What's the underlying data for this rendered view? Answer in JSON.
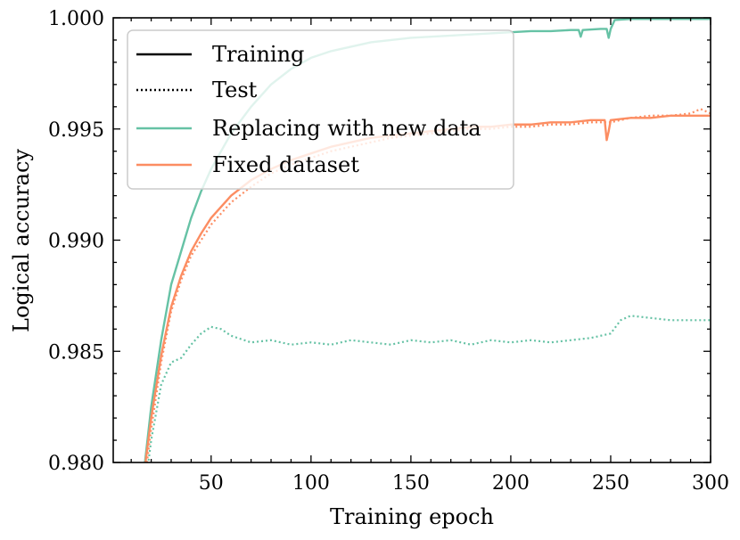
{
  "chart_data": {
    "type": "line",
    "title": "",
    "xlabel": "Training epoch",
    "ylabel": "Logical accuracy",
    "xlim": [
      1,
      300
    ],
    "ylim": [
      0.98,
      1.0
    ],
    "xticks": [
      50,
      100,
      150,
      200,
      250,
      300
    ],
    "xtick_labels": [
      "50",
      "100",
      "150",
      "200",
      "250",
      "300"
    ],
    "yticks": [
      0.98,
      0.985,
      0.99,
      0.995,
      1.0
    ],
    "ytick_labels": [
      "0.980",
      "0.985",
      "0.990",
      "0.995",
      "1.000"
    ],
    "grid": false,
    "legend_position": "top-left",
    "legend": [
      {
        "label": "Training",
        "style": "solid",
        "color": "#000000"
      },
      {
        "label": "Test",
        "style": "dotted",
        "color": "#000000"
      },
      {
        "label": "Replacing with new data",
        "style": "solid",
        "color": "#66c2a5"
      },
      {
        "label": "Fixed dataset",
        "style": "solid",
        "color": "#fc8d62"
      }
    ],
    "series": [
      {
        "name": "Replacing with new data - Training",
        "color": "#66c2a5",
        "style": "solid",
        "points": [
          [
            15,
            0.9785
          ],
          [
            20,
            0.9825
          ],
          [
            25,
            0.9855
          ],
          [
            30,
            0.988
          ],
          [
            35,
            0.9895
          ],
          [
            40,
            0.991
          ],
          [
            45,
            0.9922
          ],
          [
            50,
            0.9932
          ],
          [
            55,
            0.994
          ],
          [
            60,
            0.9948
          ],
          [
            70,
            0.996
          ],
          [
            80,
            0.997
          ],
          [
            90,
            0.9977
          ],
          [
            100,
            0.9982
          ],
          [
            110,
            0.9985
          ],
          [
            120,
            0.9987
          ],
          [
            130,
            0.9989
          ],
          [
            140,
            0.999
          ],
          [
            150,
            0.9991
          ],
          [
            160,
            0.99915
          ],
          [
            170,
            0.9992
          ],
          [
            180,
            0.99925
          ],
          [
            190,
            0.9993
          ],
          [
            200,
            0.99935
          ],
          [
            210,
            0.9994
          ],
          [
            220,
            0.9994
          ],
          [
            230,
            0.99945
          ],
          [
            234,
            0.99945
          ],
          [
            235,
            0.99915
          ],
          [
            236,
            0.99945
          ],
          [
            245,
            0.9995
          ],
          [
            248,
            0.9995
          ],
          [
            249,
            0.9991
          ],
          [
            250,
            0.9995
          ],
          [
            252,
            0.9999
          ],
          [
            260,
            0.99995
          ],
          [
            280,
            0.99995
          ],
          [
            300,
            0.99995
          ]
        ]
      },
      {
        "name": "Replacing with new data - Test",
        "color": "#66c2a5",
        "style": "dotted",
        "points": [
          [
            15,
            0.9775
          ],
          [
            20,
            0.981
          ],
          [
            25,
            0.9835
          ],
          [
            30,
            0.9845
          ],
          [
            35,
            0.9847
          ],
          [
            40,
            0.9853
          ],
          [
            45,
            0.9858
          ],
          [
            50,
            0.9861
          ],
          [
            55,
            0.986
          ],
          [
            60,
            0.9857
          ],
          [
            70,
            0.9854
          ],
          [
            80,
            0.9855
          ],
          [
            90,
            0.9853
          ],
          [
            100,
            0.9854
          ],
          [
            110,
            0.9853
          ],
          [
            120,
            0.9855
          ],
          [
            130,
            0.9854
          ],
          [
            140,
            0.9853
          ],
          [
            150,
            0.9855
          ],
          [
            160,
            0.9854
          ],
          [
            170,
            0.9855
          ],
          [
            180,
            0.9853
          ],
          [
            190,
            0.9855
          ],
          [
            200,
            0.9854
          ],
          [
            210,
            0.9855
          ],
          [
            220,
            0.9854
          ],
          [
            230,
            0.9855
          ],
          [
            240,
            0.9856
          ],
          [
            250,
            0.9858
          ],
          [
            255,
            0.9864
          ],
          [
            260,
            0.9866
          ],
          [
            270,
            0.9865
          ],
          [
            280,
            0.9864
          ],
          [
            290,
            0.9864
          ],
          [
            300,
            0.9864
          ]
        ]
      },
      {
        "name": "Fixed dataset - Training",
        "color": "#fc8d62",
        "style": "solid",
        "points": [
          [
            15,
            0.9785
          ],
          [
            20,
            0.982
          ],
          [
            25,
            0.9848
          ],
          [
            30,
            0.987
          ],
          [
            35,
            0.9884
          ],
          [
            40,
            0.9895
          ],
          [
            45,
            0.9903
          ],
          [
            50,
            0.991
          ],
          [
            55,
            0.9915
          ],
          [
            60,
            0.992
          ],
          [
            70,
            0.9927
          ],
          [
            80,
            0.9932
          ],
          [
            90,
            0.9936
          ],
          [
            100,
            0.9939
          ],
          [
            110,
            0.9942
          ],
          [
            120,
            0.9944
          ],
          [
            130,
            0.9946
          ],
          [
            140,
            0.9947
          ],
          [
            150,
            0.9948
          ],
          [
            160,
            0.9949
          ],
          [
            170,
            0.995
          ],
          [
            180,
            0.9951
          ],
          [
            190,
            0.9951
          ],
          [
            200,
            0.9952
          ],
          [
            210,
            0.9952
          ],
          [
            220,
            0.9953
          ],
          [
            230,
            0.9953
          ],
          [
            240,
            0.9954
          ],
          [
            247,
            0.9954
          ],
          [
            248,
            0.9945
          ],
          [
            249,
            0.9949
          ],
          [
            250,
            0.9954
          ],
          [
            260,
            0.9955
          ],
          [
            270,
            0.9955
          ],
          [
            280,
            0.9956
          ],
          [
            290,
            0.9956
          ],
          [
            300,
            0.9956
          ]
        ]
      },
      {
        "name": "Fixed dataset - Test",
        "color": "#fc8d62",
        "style": "dotted",
        "points": [
          [
            15,
            0.978
          ],
          [
            20,
            0.9815
          ],
          [
            25,
            0.9845
          ],
          [
            30,
            0.9868
          ],
          [
            35,
            0.9882
          ],
          [
            40,
            0.9893
          ],
          [
            45,
            0.99
          ],
          [
            50,
            0.9907
          ],
          [
            55,
            0.9912
          ],
          [
            60,
            0.9917
          ],
          [
            70,
            0.9924
          ],
          [
            80,
            0.993
          ],
          [
            90,
            0.9934
          ],
          [
            100,
            0.9937
          ],
          [
            110,
            0.994
          ],
          [
            120,
            0.9942
          ],
          [
            130,
            0.9944
          ],
          [
            140,
            0.9946
          ],
          [
            150,
            0.9947
          ],
          [
            160,
            0.9948
          ],
          [
            170,
            0.9949
          ],
          [
            180,
            0.995
          ],
          [
            190,
            0.995
          ],
          [
            200,
            0.9951
          ],
          [
            210,
            0.9951
          ],
          [
            220,
            0.9952
          ],
          [
            230,
            0.9952
          ],
          [
            240,
            0.9953
          ],
          [
            250,
            0.9953
          ],
          [
            260,
            0.9955
          ],
          [
            270,
            0.9956
          ],
          [
            280,
            0.9956
          ],
          [
            290,
            0.9957
          ],
          [
            295,
            0.9959
          ],
          [
            300,
            0.9957
          ]
        ]
      }
    ]
  }
}
